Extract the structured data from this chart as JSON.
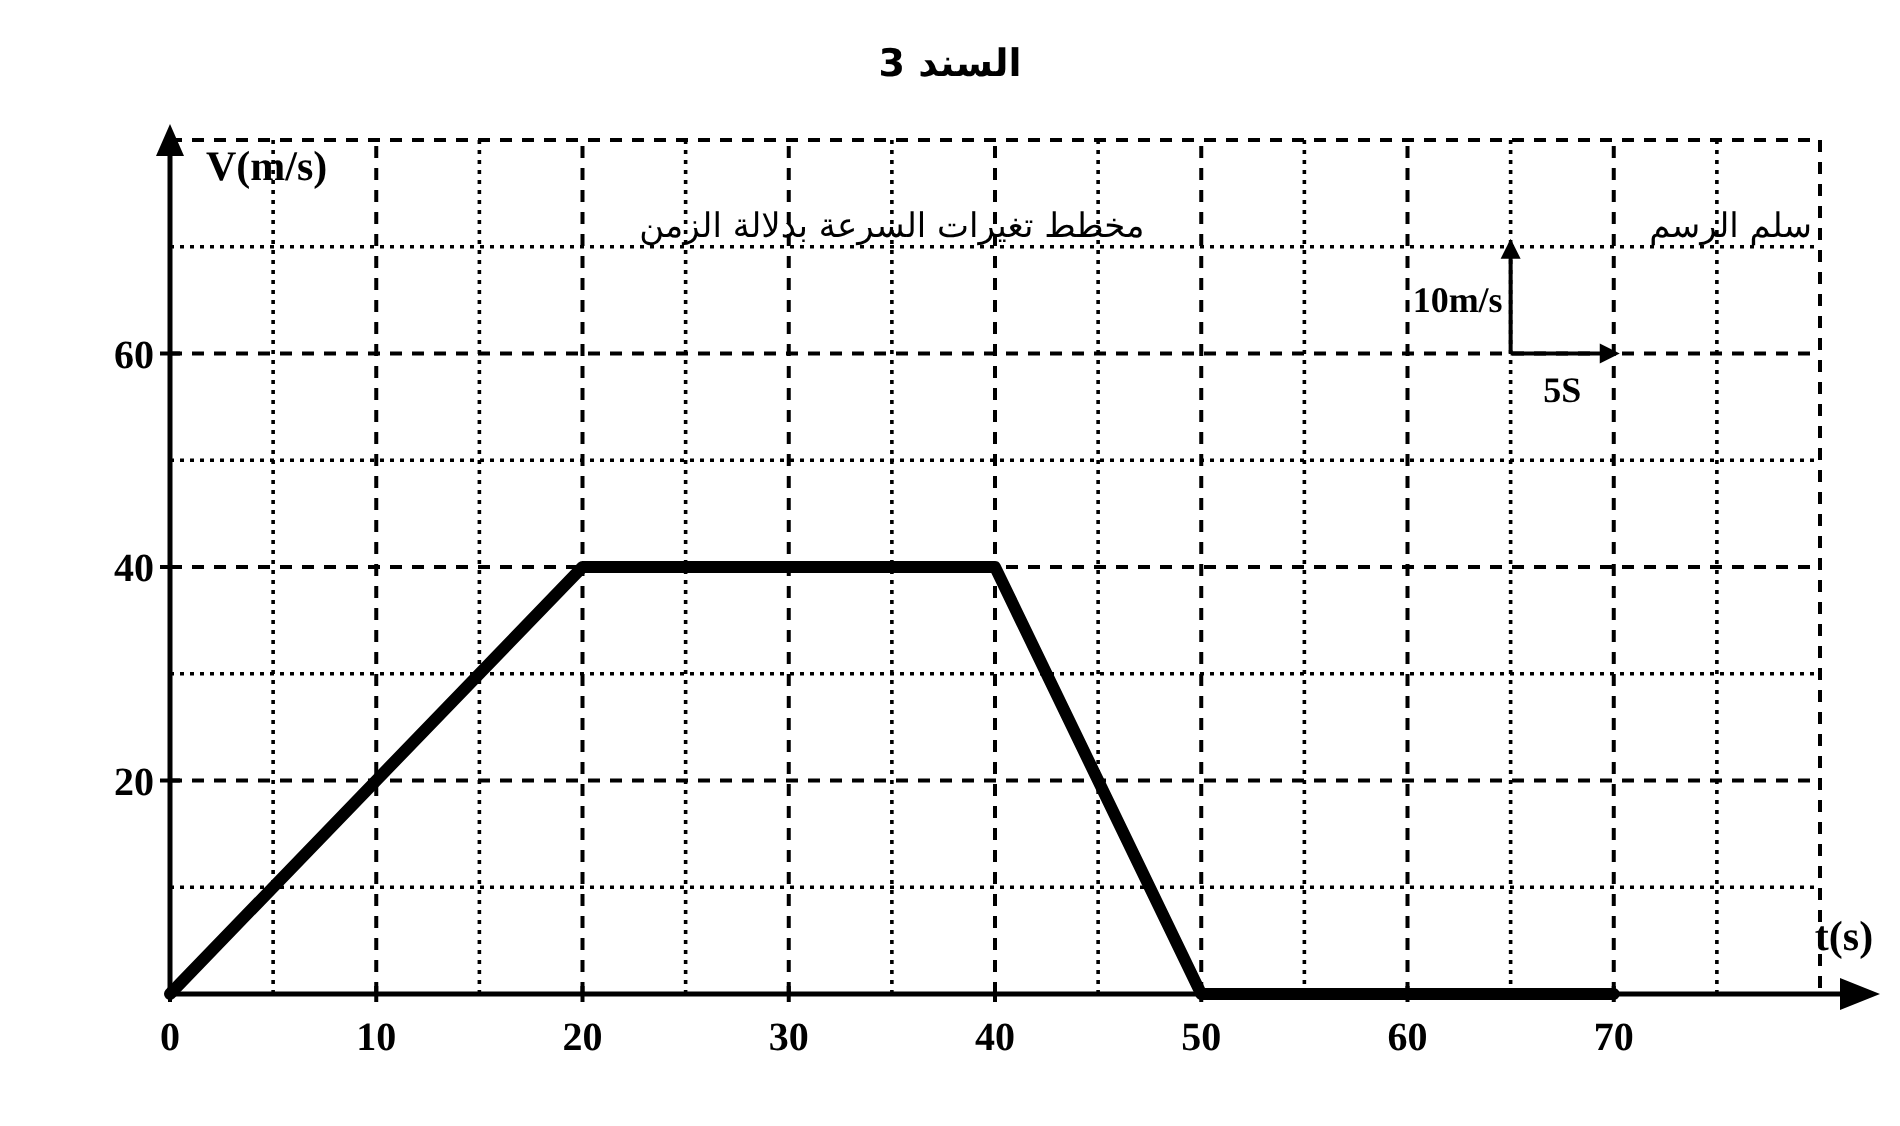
{
  "chart_data": {
    "type": "line",
    "title": "السند 3",
    "xlabel": "t(s)",
    "ylabel": "V(m/s)",
    "x": [
      0,
      20,
      40,
      50,
      70
    ],
    "series": [
      {
        "color": "#000000",
        "values": [
          0,
          40,
          40,
          0,
          0
        ]
      }
    ],
    "xlim": [
      0,
      80
    ],
    "ylim": [
      0,
      80
    ],
    "xticks": [
      0,
      10,
      20,
      30,
      40,
      50,
      60,
      70
    ],
    "yticks": [
      20,
      40,
      60
    ],
    "grid": true,
    "marker": "none",
    "line_style": "solid",
    "annotations": [
      "مخطط تغيرات السرعة بدلالة الزمن",
      "سلم الرسم",
      "10m/s",
      "5S"
    ]
  }
}
